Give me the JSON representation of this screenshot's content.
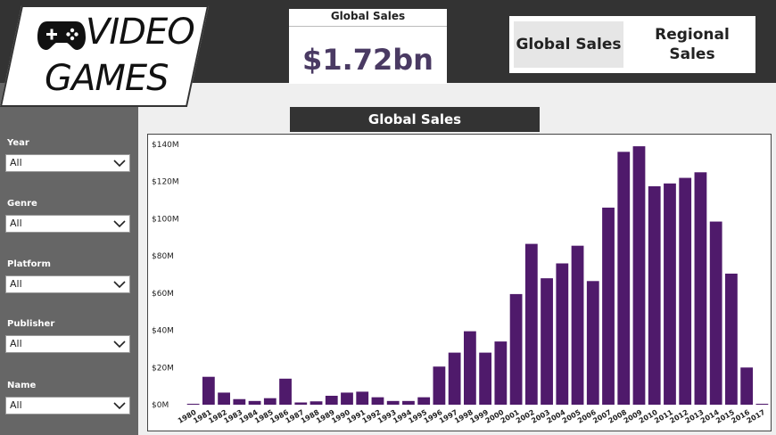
{
  "logo": {
    "line1": "VIDEO",
    "line2": "GAMES",
    "icon": "gamepad-icon"
  },
  "kpi": {
    "title": "Global Sales",
    "value": "$1.72bn"
  },
  "nav": {
    "global_label": "Global Sales",
    "regional_label": "Regional Sales"
  },
  "filters": [
    {
      "label": "Year",
      "value": "All"
    },
    {
      "label": "Genre",
      "value": "All"
    },
    {
      "label": "Platform",
      "value": "All"
    },
    {
      "label": "Publisher",
      "value": "All"
    },
    {
      "label": "Name",
      "value": "All"
    }
  ],
  "colors": {
    "bar": "#4f1a6b",
    "kpi_value": "#4a3a63",
    "dark": "#333333",
    "panel": "#666666"
  },
  "chart_data": {
    "type": "bar",
    "title": "Global Sales",
    "categories": [
      "1980",
      "1981",
      "1982",
      "1983",
      "1984",
      "1985",
      "1986",
      "1987",
      "1988",
      "1989",
      "1990",
      "1991",
      "1992",
      "1993",
      "1994",
      "1995",
      "1996",
      "1997",
      "1998",
      "1999",
      "2000",
      "2001",
      "2002",
      "2003",
      "2004",
      "2005",
      "2006",
      "2007",
      "2008",
      "2009",
      "2010",
      "2011",
      "2012",
      "2013",
      "2014",
      "2015",
      "2016",
      "2017"
    ],
    "values": [
      0.5,
      15,
      6.5,
      3,
      2,
      3.5,
      14,
      1.2,
      1.8,
      4.8,
      6.5,
      7,
      4,
      2,
      2,
      4,
      20.5,
      28,
      39.5,
      28,
      34,
      59.5,
      86.5,
      68,
      76,
      85.5,
      66.5,
      106,
      136,
      139,
      117.5,
      119,
      122,
      125,
      98.5,
      70.5,
      20,
      0.5
    ],
    "yticks": [
      "$0M",
      "$20M",
      "$40M",
      "$60M",
      "$80M",
      "$100M",
      "$120M",
      "$140M"
    ],
    "ylim": [
      0,
      140
    ],
    "xlabel": "",
    "ylabel": "",
    "grid": false,
    "legend": "none"
  }
}
